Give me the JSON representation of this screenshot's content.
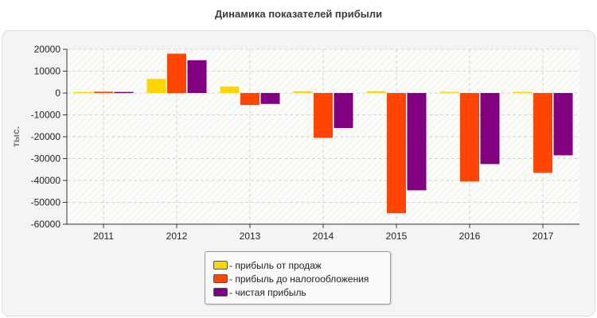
{
  "title": "Динамика показателей прибыли",
  "chart_data": {
    "type": "bar",
    "title": "Динамика показателей прибыли",
    "xlabel": "",
    "ylabel": "тыс.",
    "categories": [
      "2011",
      "2012",
      "2013",
      "2014",
      "2015",
      "2016",
      "2017"
    ],
    "ylim": [
      -60000,
      20000
    ],
    "yticks": [
      20000,
      10000,
      0,
      -10000,
      -20000,
      -30000,
      -40000,
      -50000,
      -60000
    ],
    "grid": true,
    "legend_position": "bottom",
    "series": [
      {
        "name": "- прибыль от продаж",
        "color": "#ffd700",
        "values": [
          500,
          6500,
          3000,
          800,
          800,
          500,
          500
        ]
      },
      {
        "name": "- прибыль до налогообложения",
        "color": "#ff4500",
        "values": [
          600,
          18000,
          -5500,
          -20500,
          -55000,
          -40500,
          -36500
        ]
      },
      {
        "name": "- чистая прибыль",
        "color": "#800080",
        "values": [
          500,
          15000,
          -5000,
          -16000,
          -44500,
          -32500,
          -28500
        ]
      }
    ]
  }
}
